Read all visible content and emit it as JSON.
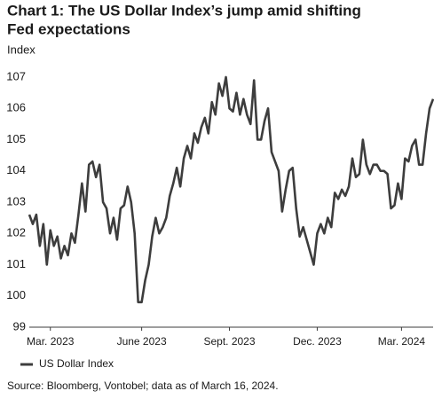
{
  "chart_data": {
    "type": "line",
    "title": [
      "Chart 1: The US Dollar Index’s jump amid shifting",
      "Fed expectations"
    ],
    "y_label": "Index",
    "source": "Source: Bloomberg, Vontobel; data as of March 16, 2024.",
    "categories": [
      null,
      null,
      null,
      null,
      null,
      null,
      "Mar. 2023",
      null,
      null,
      null,
      null,
      null,
      null,
      null,
      null,
      null,
      null,
      null,
      null,
      null,
      null,
      null,
      null,
      null,
      null,
      null,
      null,
      null,
      null,
      null,
      null,
      null,
      "June 2023",
      null,
      null,
      null,
      null,
      null,
      null,
      null,
      null,
      null,
      null,
      null,
      null,
      null,
      null,
      null,
      null,
      null,
      null,
      null,
      null,
      null,
      null,
      null,
      null,
      "Sept. 2023",
      null,
      null,
      null,
      null,
      null,
      null,
      null,
      null,
      null,
      null,
      null,
      null,
      null,
      null,
      null,
      null,
      null,
      null,
      null,
      null,
      null,
      null,
      null,
      null,
      "Dec. 2023",
      null,
      null,
      null,
      null,
      null,
      null,
      null,
      null,
      null,
      null,
      null,
      null,
      null,
      null,
      null,
      null,
      null,
      null,
      null,
      null,
      null,
      null,
      null,
      "Mar. 2024",
      null,
      null,
      null,
      null,
      null,
      null,
      null,
      null,
      null
    ],
    "series": [
      {
        "name": "US Dollar Index",
        "color": "#3d3d3d",
        "values": [
          102.6,
          102.3,
          102.6,
          101.6,
          102.3,
          101.0,
          102.1,
          101.6,
          101.9,
          101.2,
          101.6,
          101.3,
          102.0,
          101.7,
          102.6,
          103.6,
          102.7,
          104.2,
          104.3,
          103.8,
          104.2,
          103.0,
          102.8,
          102.0,
          102.5,
          101.8,
          102.8,
          102.9,
          103.5,
          103.0,
          102.0,
          99.8,
          99.8,
          100.5,
          101.0,
          101.9,
          102.5,
          102.0,
          102.2,
          102.5,
          103.2,
          103.6,
          104.1,
          103.5,
          104.4,
          104.8,
          104.4,
          105.2,
          104.9,
          105.4,
          105.7,
          105.2,
          106.2,
          105.8,
          106.8,
          106.4,
          107.0,
          106.0,
          105.9,
          106.5,
          105.8,
          106.3,
          105.8,
          105.5,
          106.9,
          105.0,
          105.0,
          105.6,
          106.0,
          104.6,
          104.3,
          104.0,
          102.7,
          103.4,
          104.0,
          104.1,
          102.8,
          101.9,
          102.2,
          101.8,
          101.4,
          101.0,
          102.0,
          102.3,
          102.0,
          102.5,
          102.2,
          103.3,
          103.1,
          103.4,
          103.2,
          103.5,
          104.4,
          103.8,
          103.9,
          105.0,
          104.2,
          103.9,
          104.2,
          104.2,
          104.0,
          104.0,
          103.9,
          102.8,
          102.9,
          103.6,
          103.1,
          104.4,
          104.3,
          104.8,
          105.0,
          104.2,
          104.2,
          105.2,
          106.0,
          106.3
        ]
      }
    ],
    "ylim": [
      99,
      107
    ],
    "yticks": [
      99,
      100,
      101,
      102,
      103,
      104,
      105,
      106,
      107
    ],
    "grid": false,
    "legend": "bottom"
  }
}
